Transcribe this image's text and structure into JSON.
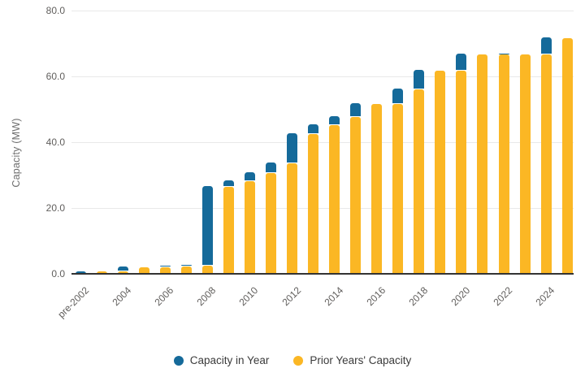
{
  "chart": {
    "y_axis_title": "Capacity (MW)",
    "y_tick_labels": [
      "0.0",
      "20.0",
      "40.0",
      "60.0",
      "80.0"
    ],
    "x_tick_labels_shown": [
      "pre-2002",
      "2004",
      "2006",
      "2008",
      "2010",
      "2012",
      "2014",
      "2016",
      "2018",
      "2020",
      "2022",
      "2024"
    ],
    "colors": {
      "capacity_in_year": "#156a9a",
      "prior_years_capacity": "#fbb724",
      "gridline": "#e9e9e9",
      "axis_line": "#333333",
      "tick_text": "#605e5c"
    },
    "legend": [
      {
        "label": "Capacity in Year",
        "color": "#156a9a"
      },
      {
        "label": "Prior Years' Capacity",
        "color": "#fbb724"
      }
    ]
  },
  "chart_data": {
    "type": "bar",
    "stacked": true,
    "title": "",
    "xlabel": "",
    "ylabel": "Capacity (MW)",
    "ylim": [
      0,
      80
    ],
    "yticks": [
      0,
      20,
      40,
      60,
      80
    ],
    "grid": "horizontal",
    "legend_position": "bottom",
    "categories": [
      "pre-2002",
      "2003",
      "2004",
      "2005",
      "2006",
      "2007",
      "2008",
      "2009",
      "2010",
      "2011",
      "2012",
      "2013",
      "2014",
      "2015",
      "2016",
      "2017",
      "2018",
      "2019",
      "2020",
      "2021",
      "2022",
      "2023",
      "2024",
      "2025"
    ],
    "x_labels_visible_every": 2,
    "series": [
      {
        "name": "Prior Years' Capacity",
        "color": "#fbb724",
        "values": [
          0,
          0.8,
          0.8,
          2.1,
          2.1,
          2.2,
          2.4,
          26.4,
          28.2,
          30.6,
          33.5,
          42.5,
          45.1,
          47.6,
          51.5,
          51.5,
          56.0,
          61.7,
          61.7,
          66.6,
          66.6,
          66.7,
          66.7,
          71.5
        ]
      },
      {
        "name": "Capacity in Year",
        "color": "#156a9a",
        "values": [
          0.8,
          0,
          1.3,
          0,
          0.1,
          0.2,
          24.0,
          1.8,
          2.4,
          2.9,
          9.0,
          2.6,
          2.5,
          3.9,
          0,
          4.5,
          5.7,
          0,
          4.9,
          0,
          0.1,
          0,
          4.8,
          0
        ]
      }
    ],
    "stacked_totals": [
      0.8,
      0.8,
      2.1,
      2.1,
      2.2,
      2.4,
      26.4,
      28.2,
      30.6,
      33.5,
      42.5,
      45.1,
      47.6,
      51.5,
      51.5,
      56.0,
      61.7,
      61.7,
      66.5,
      66.6,
      66.7,
      66.7,
      71.5,
      71.5
    ]
  }
}
